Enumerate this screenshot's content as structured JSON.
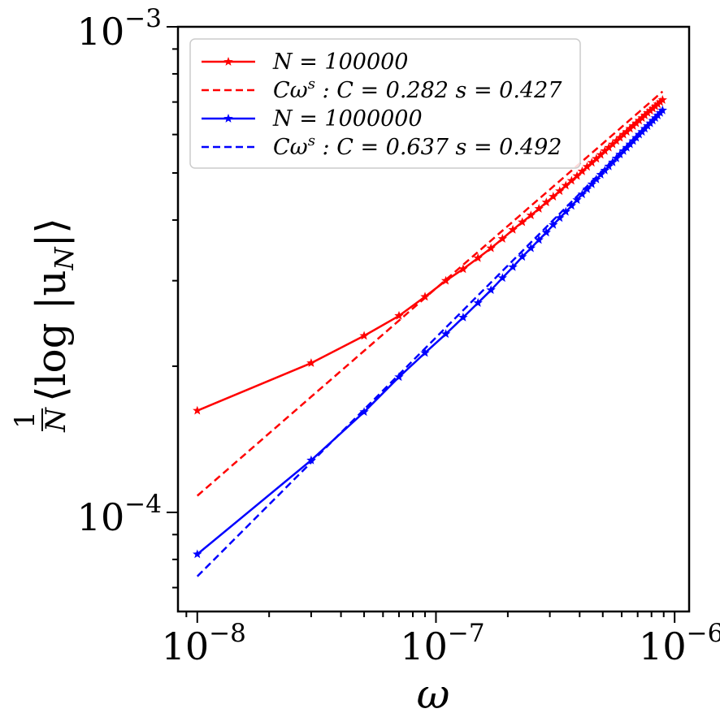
{
  "chart_data": {
    "type": "line",
    "scale": {
      "x": "log",
      "y": "log"
    },
    "xlabel": "ω",
    "ylabel_parts": {
      "frac_num": "1",
      "frac_den": "N",
      "body": "⟨log |u",
      "sub": "N",
      "close": "|⟩"
    },
    "xlim": [
      8.3e-09,
      1.15e-06
    ],
    "ylim": [
      6.25e-05,
      0.001
    ],
    "x_ticks": [
      {
        "value": 1e-08,
        "base": "10",
        "exp": "−8"
      },
      {
        "value": 1e-07,
        "base": "10",
        "exp": "−7"
      },
      {
        "value": 1e-06,
        "base": "10",
        "exp": "−6"
      }
    ],
    "y_ticks": [
      {
        "value": 0.0001,
        "base": "10",
        "exp": "−4"
      },
      {
        "value": 0.001,
        "base": "10",
        "exp": "−3"
      }
    ],
    "omega_start": 1e-08,
    "omega_step": 2e-08,
    "omega_count": 45,
    "series": [
      {
        "name": "N = 100000",
        "color": "#ff0000",
        "style": "solid",
        "marker": "star",
        "values": [
          0.000162,
          0.000203,
          0.000231,
          0.000254,
          0.000278,
          0.0003,
          0.000317,
          0.000334,
          0.00035,
          0.000366,
          0.000382,
          0.000396,
          0.000409,
          0.000422,
          0.000435,
          0.000447,
          0.000459,
          0.000471,
          0.000482,
          0.000493,
          0.000504,
          0.000515,
          0.000525,
          0.000535,
          0.000545,
          0.000555,
          0.000564,
          0.000573,
          0.000582,
          0.000591,
          0.0006,
          0.000608,
          0.000617,
          0.000625,
          0.000633,
          0.000641,
          0.000649,
          0.000657,
          0.000665,
          0.000672,
          0.000679,
          0.000686,
          0.000693,
          0.0007,
          0.000707
        ]
      },
      {
        "name": "Cω^s : C = 0.282   s = 0.427",
        "color": "#ff0000",
        "style": "dashed",
        "marker": "none",
        "fit": {
          "C": 0.282,
          "s": 0.427
        }
      },
      {
        "name": "N = 1000000",
        "color": "#0000ff",
        "style": "solid",
        "marker": "star",
        "values": [
          8.2e-05,
          0.000128,
          0.000161,
          0.00019,
          0.000213,
          0.000233,
          0.000252,
          0.00027,
          0.000287,
          0.000304,
          0.00032,
          0.000336,
          0.00035,
          0.000364,
          0.000377,
          0.000391,
          0.000404,
          0.000416,
          0.000428,
          0.00044,
          0.000452,
          0.000463,
          0.000474,
          0.000485,
          0.000496,
          0.000506,
          0.000516,
          0.000526,
          0.000536,
          0.000546,
          0.000555,
          0.000564,
          0.000573,
          0.000582,
          0.000591,
          0.0006,
          0.000608,
          0.000617,
          0.000625,
          0.000633,
          0.000641,
          0.000649,
          0.000657,
          0.000665,
          0.000673
        ]
      },
      {
        "name": "Cω^s : C = 0.637   s = 0.492",
        "color": "#0000ff",
        "style": "dashed",
        "marker": "none",
        "fit": {
          "C": 0.637,
          "s": 0.492
        }
      }
    ],
    "legend": {
      "position": "upper-left",
      "entries": [
        {
          "lhs": "N",
          "rhs": " = 100000",
          "fit": false
        },
        {
          "lhs": "Cω",
          "sup": "s",
          "rhs": " : C = 0.282     s = 0.427",
          "fit": true
        },
        {
          "lhs": "N",
          "rhs": " = 1000000",
          "fit": false
        },
        {
          "lhs": "Cω",
          "sup": "s",
          "rhs": " : C = 0.637     s = 0.492",
          "fit": true
        }
      ]
    }
  }
}
